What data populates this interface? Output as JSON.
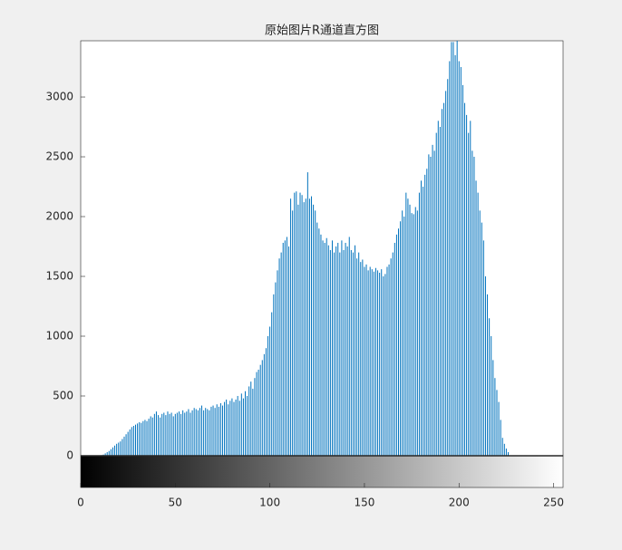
{
  "chart_data": {
    "type": "histogram",
    "title": "原始图片R通道直方图",
    "color": "#0072bd",
    "xlim": [
      0,
      255
    ],
    "xticks": [
      0,
      50,
      100,
      150,
      200,
      250
    ],
    "ylim": [
      0,
      3470
    ],
    "yticks": [
      0,
      500,
      1000,
      1500,
      2000,
      2500,
      3000
    ],
    "values": [
      0,
      0,
      0,
      0,
      0,
      0,
      0,
      0,
      0,
      0,
      0,
      5,
      10,
      20,
      30,
      40,
      55,
      70,
      85,
      100,
      110,
      120,
      140,
      160,
      180,
      200,
      220,
      240,
      250,
      260,
      270,
      280,
      275,
      290,
      300,
      290,
      310,
      330,
      320,
      350,
      370,
      340,
      320,
      350,
      360,
      340,
      370,
      350,
      360,
      330,
      350,
      360,
      370,
      350,
      380,
      360,
      370,
      390,
      360,
      380,
      400,
      390,
      380,
      400,
      420,
      380,
      400,
      390,
      380,
      410,
      420,
      400,
      430,
      410,
      440,
      420,
      450,
      470,
      430,
      460,
      480,
      450,
      470,
      500,
      460,
      520,
      480,
      540,
      500,
      580,
      620,
      560,
      650,
      700,
      720,
      760,
      800,
      850,
      900,
      1000,
      1080,
      1200,
      1350,
      1450,
      1550,
      1650,
      1700,
      1780,
      1800,
      1830,
      1750,
      2150,
      2050,
      2200,
      2210,
      2100,
      2200,
      2180,
      2120,
      2150,
      2370,
      2150,
      2170,
      2100,
      2050,
      1950,
      1900,
      1850,
      1800,
      1780,
      1820,
      1760,
      1720,
      1800,
      1700,
      1750,
      1780,
      1700,
      1800,
      1720,
      1780,
      1750,
      1830,
      1720,
      1700,
      1760,
      1650,
      1700,
      1620,
      1640,
      1580,
      1600,
      1550,
      1580,
      1560,
      1540,
      1570,
      1550,
      1530,
      1560,
      1500,
      1520,
      1580,
      1600,
      1650,
      1700,
      1780,
      1850,
      1900,
      1960,
      2050,
      2000,
      2200,
      2150,
      2100,
      2030,
      2020,
      2080,
      2050,
      2200,
      2300,
      2250,
      2350,
      2400,
      2520,
      2500,
      2600,
      2550,
      2700,
      2800,
      2750,
      2900,
      2950,
      3050,
      3150,
      3300,
      3460,
      3460,
      3350,
      3470,
      3300,
      3250,
      3100,
      2950,
      2850,
      2700,
      2800,
      2550,
      2500,
      2300,
      2200,
      2050,
      1950,
      1800,
      1500,
      1350,
      1150,
      1000,
      800,
      650,
      550,
      450,
      300,
      150,
      100,
      60,
      30,
      0,
      0,
      0,
      0,
      0,
      0,
      0,
      0,
      0,
      0,
      0,
      0,
      0,
      0,
      0,
      0,
      0,
      0,
      0,
      0,
      0,
      0,
      0,
      0,
      0,
      0,
      0,
      0,
      0
    ]
  }
}
